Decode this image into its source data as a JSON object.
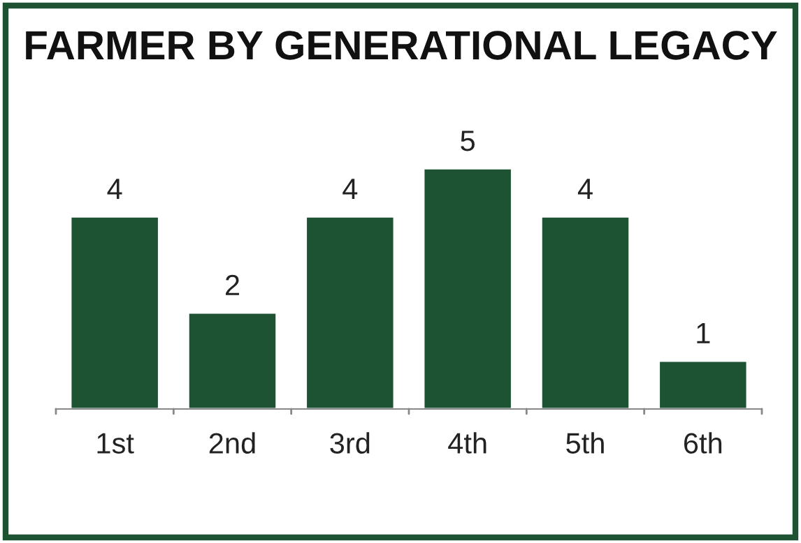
{
  "chart_data": {
    "type": "bar",
    "title": "FARMER BY GENERATIONAL LEGACY",
    "categories": [
      "1st",
      "2nd",
      "3rd",
      "4th",
      "5th",
      "6th"
    ],
    "values": [
      4,
      2,
      4,
      5,
      4,
      1
    ],
    "color": "#1d5232",
    "data_labels": true,
    "grid": false,
    "legend": false
  }
}
